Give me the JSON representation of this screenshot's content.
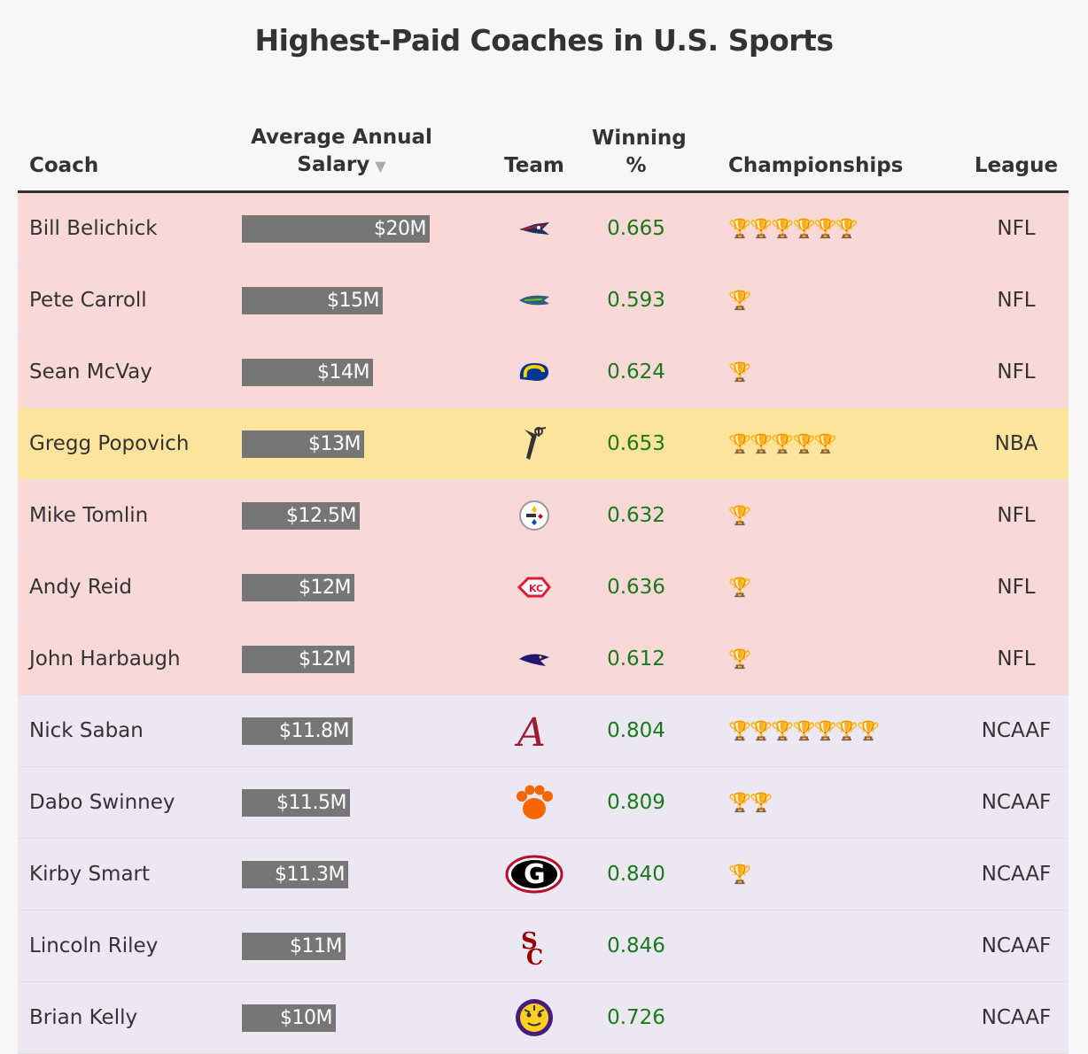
{
  "title": "Highest-Paid Coaches in U.S. Sports",
  "headers": {
    "coach": "Coach",
    "salary_line1": "Average Annual",
    "salary_line2": "Salary",
    "sort_indicator": "▼",
    "team": "Team",
    "winning_line1": "Winning",
    "winning_line2": "%",
    "championships": "Championships",
    "league": "League"
  },
  "colors": {
    "NFL": "#f8d9d8",
    "NBA": "#fde49c",
    "NCAAF": "#ebe8f4",
    "bar": "#767676",
    "winning": "#1a7a1a"
  },
  "chart_data": {
    "type": "table",
    "title": "Highest-Paid Coaches in U.S. Sports",
    "columns": [
      "Coach",
      "Average Annual Salary",
      "Team",
      "Winning %",
      "Championships",
      "League"
    ],
    "salary_max": 20,
    "rows": [
      {
        "coach": "Bill Belichick",
        "salary": 20,
        "salary_label": "$20M",
        "team_icon": "patriots-logo",
        "winning": "0.665",
        "championships": 6,
        "league": "NFL"
      },
      {
        "coach": "Pete Carroll",
        "salary": 15,
        "salary_label": "$15M",
        "team_icon": "seahawks-logo",
        "winning": "0.593",
        "championships": 1,
        "league": "NFL"
      },
      {
        "coach": "Sean McVay",
        "salary": 14,
        "salary_label": "$14M",
        "team_icon": "rams-logo",
        "winning": "0.624",
        "championships": 1,
        "league": "NFL"
      },
      {
        "coach": "Gregg Popovich",
        "salary": 13,
        "salary_label": "$13M",
        "team_icon": "spurs-logo",
        "winning": "0.653",
        "championships": 5,
        "league": "NBA"
      },
      {
        "coach": "Mike Tomlin",
        "salary": 12.5,
        "salary_label": "$12.5M",
        "team_icon": "steelers-logo",
        "winning": "0.632",
        "championships": 1,
        "league": "NFL"
      },
      {
        "coach": "Andy Reid",
        "salary": 12,
        "salary_label": "$12M",
        "team_icon": "chiefs-logo",
        "winning": "0.636",
        "championships": 1,
        "league": "NFL"
      },
      {
        "coach": "John Harbaugh",
        "salary": 12,
        "salary_label": "$12M",
        "team_icon": "ravens-logo",
        "winning": "0.612",
        "championships": 1,
        "league": "NFL"
      },
      {
        "coach": "Nick Saban",
        "salary": 11.8,
        "salary_label": "$11.8M",
        "team_icon": "alabama-logo",
        "winning": "0.804",
        "championships": 7,
        "league": "NCAAF"
      },
      {
        "coach": "Dabo Swinney",
        "salary": 11.5,
        "salary_label": "$11.5M",
        "team_icon": "clemson-logo",
        "winning": "0.809",
        "championships": 2,
        "league": "NCAAF"
      },
      {
        "coach": "Kirby Smart",
        "salary": 11.3,
        "salary_label": "$11.3M",
        "team_icon": "georgia-logo",
        "winning": "0.840",
        "championships": 1,
        "league": "NCAAF"
      },
      {
        "coach": "Lincoln Riley",
        "salary": 11,
        "salary_label": "$11M",
        "team_icon": "usc-logo",
        "winning": "0.846",
        "championships": 0,
        "league": "NCAAF"
      },
      {
        "coach": "Brian Kelly",
        "salary": 10,
        "salary_label": "$10M",
        "team_icon": "lsu-logo",
        "winning": "0.726",
        "championships": 0,
        "league": "NCAAF"
      }
    ]
  }
}
